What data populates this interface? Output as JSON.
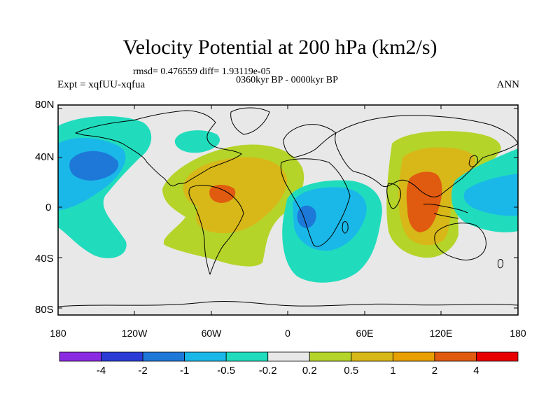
{
  "title": "Velocity Potential at 200 hPa (km2/s)",
  "stats": "rmsd= 0.476559 diff= 1.93119e-05",
  "period": "0360kyr BP - 0000kyr BP",
  "experiment": "Expt = xqfUU-xqfua",
  "season": "ANN",
  "lat_labels": [
    "80N",
    "40N",
    "0",
    "40S",
    "80S"
  ],
  "lon_labels": [
    "180",
    "120W",
    "60W",
    "0",
    "60E",
    "120E",
    "180"
  ],
  "colorbar": {
    "colors": [
      "#8a2be2",
      "#2a3bd6",
      "#1e78d8",
      "#1ab8e8",
      "#20dcbd",
      "#e8e8e8",
      "#b4d42a",
      "#d8b818",
      "#e8a000",
      "#e05a10",
      "#e80000"
    ],
    "labels": [
      "-4",
      "-2",
      "-1",
      "-0.5",
      "-0.2",
      "0.2",
      "0.5",
      "1",
      "2",
      "4"
    ]
  },
  "colors": {
    "background": "#e8e8e8",
    "neg_weak": "#20dcbd",
    "neg_mid": "#1ab8e8",
    "neg_strong": "#1e78d8",
    "pos_weak": "#b4d42a",
    "pos_mid": "#d8b818",
    "pos_strong": "#e8a000",
    "pos_max": "#e05a10"
  }
}
